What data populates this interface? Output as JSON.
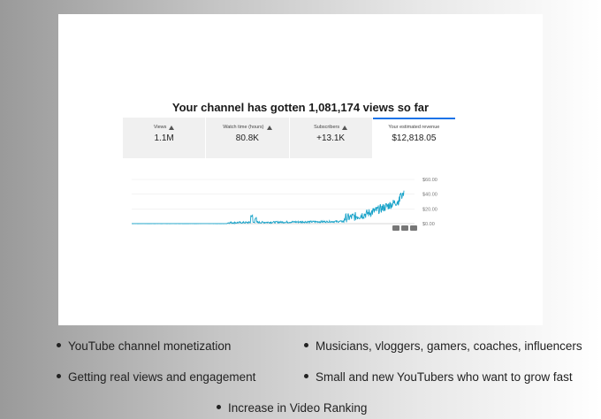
{
  "headline": "Your channel has gotten 1,081,174 views so far",
  "metrics": [
    {
      "label": "Views",
      "value": "1.1M",
      "warn": true
    },
    {
      "label": "Watch time (hours)",
      "value": "80.8K",
      "warn": true
    },
    {
      "label": "Subscribers",
      "value": "+13.1K",
      "warn": true
    },
    {
      "label": "Your estimated revenue",
      "value": "$12,818.05",
      "warn": false
    }
  ],
  "chart_data": {
    "type": "line",
    "series": [
      {
        "name": "",
        "color": "#1aa3c9"
      }
    ],
    "ylim": [
      0,
      60
    ],
    "yticks": [
      "$60.00",
      "$40.00",
      "$20.00",
      "$0.00"
    ],
    "grid": true
  },
  "chart_controls": [
    "ctrl-a",
    "ctrl-b",
    "ctrl-c"
  ],
  "bullets": [
    "YouTube channel monetization",
    "Musicians, vloggers, gamers, coaches, influencers",
    "Getting real views and engagement",
    "Small and new YouTubers who want to grow fast",
    "Increase in Video Ranking"
  ]
}
